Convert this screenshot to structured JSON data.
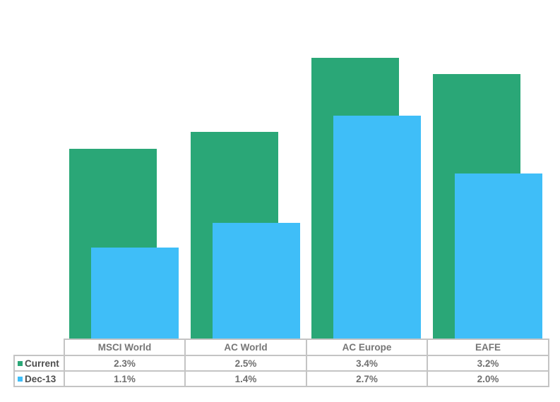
{
  "chart_data": {
    "type": "bar",
    "title": "",
    "xlabel": "",
    "ylabel": "",
    "categories": [
      "MSCI World",
      "AC World",
      "AC Europe",
      "EAFE"
    ],
    "series": [
      {
        "name": "Current",
        "values": [
          2.3,
          2.5,
          3.4,
          3.2
        ],
        "color": "#2aa777"
      },
      {
        "name": "Dec-13",
        "values": [
          1.1,
          1.4,
          2.7,
          2.0
        ],
        "color": "#3fbef8"
      }
    ],
    "value_suffix": "%",
    "ylim": [
      0,
      4.1
    ],
    "axes_visible": false,
    "grid": false,
    "bar_style": "overlapped-offset",
    "legend_position": "table-left-column",
    "data_table_shown": true
  },
  "table": {
    "headers": [
      "MSCI World",
      "AC World",
      "AC Europe",
      "EAFE"
    ],
    "rows": [
      {
        "label": "Current",
        "swatch_color": "#2aa777",
        "cells": [
          "2.3%",
          "2.5%",
          "3.4%",
          "3.2%"
        ]
      },
      {
        "label": "Dec-13",
        "swatch_color": "#3fbef8",
        "cells": [
          "1.1%",
          "1.4%",
          "2.7%",
          "2.0%"
        ]
      }
    ]
  },
  "colors": {
    "background": "#ffffff",
    "table_border": "#c4c4c4",
    "header_text": "#767676",
    "value_text": "#6f6f6f",
    "legend_text": "#4e4e4e"
  }
}
